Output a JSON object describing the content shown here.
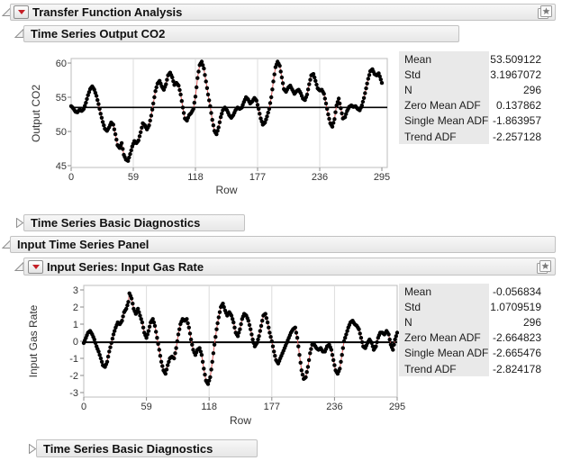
{
  "headers": {
    "transfer_function": {
      "title": "Transfer Function Analysis",
      "state": "expanded"
    },
    "output_series": {
      "title": "Time Series Output CO2",
      "state": "expanded"
    },
    "diagnostics_output": {
      "title": "Time Series Basic Diagnostics",
      "state": "collapsed"
    },
    "input_panel": {
      "title": "Input Time Series Panel",
      "state": "expanded"
    },
    "input_series": {
      "title": "Input Series: Input Gas Rate",
      "state": "expanded"
    },
    "diagnostics_input": {
      "title": "Time Series Basic Diagnostics",
      "state": "collapsed"
    }
  },
  "icons": {
    "menu": "red-triangle-menu",
    "bookmark": "layered-star-bookmark",
    "expanded": "open-disclosure-triangle",
    "collapsed": "closed-disclosure-triangle"
  },
  "colors": {
    "accent_red": "#c41e25",
    "series_line": "#dd5c5c",
    "marker": "#000000",
    "panel_bg": "#e9e9e9",
    "header_border": "#c2c2c2",
    "grid": "#dcdcdc",
    "plot_frame": "#bcbcbc",
    "tick": "#8a8a8a",
    "text": "#1c1c1c"
  },
  "summary_panels": [
    {
      "rows": [
        {
          "label": "Mean",
          "value": "53.509122"
        },
        {
          "label": "Std",
          "value": "3.1967072"
        },
        {
          "label": "N",
          "value": "296"
        },
        {
          "label": "Zero Mean ADF",
          "value": "0.137862"
        },
        {
          "label": "Single Mean ADF",
          "value": "-1.863957"
        },
        {
          "label": "Trend ADF",
          "value": "-2.257128"
        }
      ]
    },
    {
      "rows": [
        {
          "label": "Mean",
          "value": "-0.056834"
        },
        {
          "label": "Std",
          "value": "1.0709519"
        },
        {
          "label": "N",
          "value": "296"
        },
        {
          "label": "Zero Mean ADF",
          "value": "-2.664823"
        },
        {
          "label": "Single Mean ADF",
          "value": "-2.665476"
        },
        {
          "label": "Trend ADF",
          "value": "-2.824178"
        }
      ]
    }
  ],
  "chart_data": [
    {
      "type": "line",
      "title": "Time Series Output CO2",
      "series_name": "Output CO2",
      "xlabel": "Row",
      "ylabel": "Output CO2",
      "x_ticks": [
        0,
        59,
        118,
        177,
        236,
        295
      ],
      "y_ticks": [
        45,
        50,
        55,
        60
      ],
      "xlim": [
        0,
        295
      ],
      "ylim": [
        44.7,
        60.7
      ],
      "grid": "vertical-only",
      "legend": "none",
      "marker": "filled-circle",
      "mean_line": 53.509122,
      "n_points": 296,
      "waypoints": [
        [
          0,
          53.7
        ],
        [
          2,
          53.4
        ],
        [
          4,
          52.9
        ],
        [
          6,
          52.8
        ],
        [
          8,
          53.2
        ],
        [
          10,
          53.0
        ],
        [
          12,
          53.3
        ],
        [
          14,
          54.2
        ],
        [
          16,
          55.3
        ],
        [
          18,
          56.2
        ],
        [
          20,
          56.6
        ],
        [
          22,
          56.1
        ],
        [
          24,
          55.2
        ],
        [
          26,
          54.0
        ],
        [
          28,
          52.6
        ],
        [
          30,
          51.4
        ],
        [
          32,
          50.4
        ],
        [
          34,
          50.1
        ],
        [
          36,
          50.6
        ],
        [
          38,
          51.3
        ],
        [
          40,
          51.0
        ],
        [
          42,
          49.6
        ],
        [
          44,
          48.0
        ],
        [
          46,
          47.6
        ],
        [
          48,
          48.3
        ],
        [
          50,
          46.6
        ],
        [
          52,
          45.9
        ],
        [
          54,
          45.7
        ],
        [
          56,
          46.7
        ],
        [
          58,
          47.8
        ],
        [
          60,
          48.6
        ],
        [
          62,
          48.3
        ],
        [
          64,
          48.7
        ],
        [
          66,
          49.9
        ],
        [
          68,
          51.2
        ],
        [
          70,
          50.9
        ],
        [
          72,
          50.3
        ],
        [
          74,
          50.9
        ],
        [
          76,
          52.3
        ],
        [
          78,
          54.1
        ],
        [
          80,
          55.9
        ],
        [
          82,
          57.0
        ],
        [
          84,
          57.4
        ],
        [
          86,
          56.6
        ],
        [
          88,
          56.1
        ],
        [
          90,
          56.9
        ],
        [
          92,
          58.2
        ],
        [
          94,
          58.6
        ],
        [
          96,
          57.9
        ],
        [
          98,
          56.8
        ],
        [
          100,
          57.1
        ],
        [
          102,
          56.7
        ],
        [
          104,
          55.4
        ],
        [
          106,
          53.5
        ],
        [
          108,
          51.9
        ],
        [
          110,
          51.6
        ],
        [
          112,
          52.4
        ],
        [
          114,
          52.7
        ],
        [
          116,
          53.3
        ],
        [
          118,
          55.1
        ],
        [
          120,
          57.8
        ],
        [
          122,
          59.7
        ],
        [
          124,
          60.2
        ],
        [
          126,
          59.2
        ],
        [
          128,
          57.3
        ],
        [
          130,
          55.4
        ],
        [
          132,
          53.7
        ],
        [
          134,
          51.7
        ],
        [
          136,
          50.1
        ],
        [
          138,
          49.6
        ],
        [
          140,
          50.6
        ],
        [
          142,
          52.1
        ],
        [
          144,
          53.1
        ],
        [
          146,
          53.5
        ],
        [
          148,
          53.1
        ],
        [
          150,
          52.4
        ],
        [
          152,
          52.0
        ],
        [
          154,
          52.4
        ],
        [
          156,
          53.1
        ],
        [
          158,
          53.5
        ],
        [
          160,
          53.3
        ],
        [
          162,
          53.5
        ],
        [
          164,
          54.3
        ],
        [
          166,
          55.0
        ],
        [
          168,
          54.7
        ],
        [
          170,
          54.1
        ],
        [
          172,
          54.4
        ],
        [
          174,
          54.9
        ],
        [
          176,
          54.5
        ],
        [
          178,
          53.3
        ],
        [
          180,
          51.9
        ],
        [
          182,
          51.0
        ],
        [
          184,
          51.3
        ],
        [
          186,
          52.2
        ],
        [
          188,
          53.3
        ],
        [
          190,
          55.0
        ],
        [
          192,
          57.3
        ],
        [
          194,
          59.4
        ],
        [
          196,
          60.2
        ],
        [
          198,
          59.6
        ],
        [
          200,
          57.9
        ],
        [
          202,
          56.2
        ],
        [
          204,
          55.8
        ],
        [
          206,
          56.4
        ],
        [
          208,
          56.7
        ],
        [
          210,
          56.1
        ],
        [
          212,
          55.5
        ],
        [
          214,
          55.9
        ],
        [
          216,
          56.1
        ],
        [
          218,
          55.6
        ],
        [
          220,
          54.8
        ],
        [
          222,
          54.6
        ],
        [
          224,
          55.4
        ],
        [
          226,
          56.9
        ],
        [
          228,
          58.2
        ],
        [
          230,
          58.4
        ],
        [
          232,
          57.4
        ],
        [
          234,
          56.3
        ],
        [
          236,
          56.0
        ],
        [
          238,
          56.1
        ],
        [
          240,
          55.5
        ],
        [
          242,
          54.1
        ],
        [
          244,
          52.5
        ],
        [
          246,
          51.2
        ],
        [
          248,
          50.7
        ],
        [
          250,
          51.8
        ],
        [
          252,
          53.8
        ],
        [
          254,
          54.8
        ],
        [
          256,
          53.4
        ],
        [
          258,
          51.9
        ],
        [
          260,
          52.1
        ],
        [
          262,
          53.0
        ],
        [
          264,
          53.6
        ],
        [
          266,
          53.8
        ],
        [
          268,
          53.6
        ],
        [
          270,
          53.7
        ],
        [
          272,
          53.3
        ],
        [
          274,
          53.1
        ],
        [
          276,
          53.8
        ],
        [
          278,
          54.9
        ],
        [
          280,
          56.3
        ],
        [
          282,
          57.7
        ],
        [
          284,
          58.8
        ],
        [
          286,
          59.1
        ],
        [
          288,
          58.4
        ],
        [
          290,
          58.2
        ],
        [
          292,
          58.5
        ],
        [
          294,
          57.6
        ],
        [
          295,
          57.1
        ]
      ]
    },
    {
      "type": "line",
      "title": "Input Series: Input Gas Rate",
      "series_name": "Input Gas Rate",
      "xlabel": "Row",
      "ylabel": "Input Gas Rate",
      "x_ticks": [
        0,
        59,
        118,
        177,
        236,
        295
      ],
      "y_ticks": [
        -3,
        -2,
        -1,
        0,
        1,
        2,
        3
      ],
      "xlim": [
        0,
        295
      ],
      "ylim": [
        -3.26,
        3.26
      ],
      "grid": "vertical-only",
      "legend": "none",
      "marker": "filled-circle",
      "mean_line": -0.056834,
      "n_points": 296,
      "waypoints": [
        [
          0,
          -0.1
        ],
        [
          2,
          0.2
        ],
        [
          4,
          0.5
        ],
        [
          6,
          0.6
        ],
        [
          8,
          0.4
        ],
        [
          10,
          0.1
        ],
        [
          12,
          -0.3
        ],
        [
          14,
          -0.6
        ],
        [
          16,
          -1.0
        ],
        [
          18,
          -1.4
        ],
        [
          20,
          -1.5
        ],
        [
          22,
          -1.2
        ],
        [
          24,
          -0.6
        ],
        [
          26,
          -0.1
        ],
        [
          28,
          0.4
        ],
        [
          30,
          0.8
        ],
        [
          32,
          1.1
        ],
        [
          34,
          1.0
        ],
        [
          36,
          1.2
        ],
        [
          38,
          1.7
        ],
        [
          40,
          1.9
        ],
        [
          42,
          2.3
        ],
        [
          43,
          2.8
        ],
        [
          45,
          2.5
        ],
        [
          47,
          1.9
        ],
        [
          49,
          1.6
        ],
        [
          51,
          1.9
        ],
        [
          53,
          1.5
        ],
        [
          55,
          1.1
        ],
        [
          57,
          0.5
        ],
        [
          59,
          0.2
        ],
        [
          61,
          0.6
        ],
        [
          63,
          1.1
        ],
        [
          65,
          1.3
        ],
        [
          67,
          0.9
        ],
        [
          69,
          0.2
        ],
        [
          71,
          -0.5
        ],
        [
          73,
          -1.2
        ],
        [
          75,
          -1.7
        ],
        [
          77,
          -1.9
        ],
        [
          79,
          -1.4
        ],
        [
          81,
          -1.0
        ],
        [
          83,
          -0.9
        ],
        [
          85,
          -1.0
        ],
        [
          87,
          -0.4
        ],
        [
          89,
          0.4
        ],
        [
          91,
          1.0
        ],
        [
          93,
          1.3
        ],
        [
          95,
          1.2
        ],
        [
          97,
          1.3
        ],
        [
          99,
          0.8
        ],
        [
          101,
          0.1
        ],
        [
          103,
          -0.5
        ],
        [
          105,
          -0.8
        ],
        [
          107,
          -0.5
        ],
        [
          109,
          -0.4
        ],
        [
          111,
          -0.8
        ],
        [
          113,
          -1.6
        ],
        [
          115,
          -2.3
        ],
        [
          117,
          -2.5
        ],
        [
          119,
          -2.1
        ],
        [
          121,
          -1.2
        ],
        [
          123,
          -0.2
        ],
        [
          125,
          0.7
        ],
        [
          127,
          1.4
        ],
        [
          129,
          2.0
        ],
        [
          131,
          2.2
        ],
        [
          133,
          1.8
        ],
        [
          135,
          1.5
        ],
        [
          137,
          1.7
        ],
        [
          139,
          1.5
        ],
        [
          141,
          1.1
        ],
        [
          143,
          0.5
        ],
        [
          145,
          0.3
        ],
        [
          147,
          0.7
        ],
        [
          149,
          1.3
        ],
        [
          151,
          1.6
        ],
        [
          153,
          1.5
        ],
        [
          155,
          1.2
        ],
        [
          157,
          0.7
        ],
        [
          159,
          0.1
        ],
        [
          161,
          -0.3
        ],
        [
          163,
          -0.1
        ],
        [
          165,
          0.3
        ],
        [
          167,
          0.9
        ],
        [
          169,
          1.5
        ],
        [
          171,
          1.6
        ],
        [
          173,
          1.1
        ],
        [
          175,
          0.5
        ],
        [
          177,
          0.0
        ],
        [
          179,
          -0.6
        ],
        [
          181,
          -1.1
        ],
        [
          183,
          -1.3
        ],
        [
          185,
          -1.0
        ],
        [
          187,
          -0.7
        ],
        [
          189,
          -0.4
        ],
        [
          191,
          -0.1
        ],
        [
          193,
          0.2
        ],
        [
          195,
          0.5
        ],
        [
          197,
          0.7
        ],
        [
          199,
          0.8
        ],
        [
          201,
          0.2
        ],
        [
          203,
          -0.8
        ],
        [
          205,
          -1.7
        ],
        [
          207,
          -2.2
        ],
        [
          209,
          -2.1
        ],
        [
          211,
          -1.5
        ],
        [
          213,
          -0.7
        ],
        [
          215,
          -0.2
        ],
        [
          217,
          -0.2
        ],
        [
          219,
          -0.4
        ],
        [
          221,
          -0.5
        ],
        [
          223,
          -0.4
        ],
        [
          225,
          -0.6
        ],
        [
          227,
          -0.6
        ],
        [
          229,
          -0.3
        ],
        [
          231,
          -0.2
        ],
        [
          233,
          -0.5
        ],
        [
          235,
          -1.1
        ],
        [
          237,
          -1.7
        ],
        [
          239,
          -1.9
        ],
        [
          241,
          -1.6
        ],
        [
          243,
          -0.8
        ],
        [
          245,
          0.0
        ],
        [
          247,
          0.4
        ],
        [
          249,
          0.8
        ],
        [
          251,
          1.1
        ],
        [
          253,
          1.2
        ],
        [
          255,
          1.0
        ],
        [
          257,
          0.9
        ],
        [
          259,
          0.7
        ],
        [
          261,
          0.2
        ],
        [
          263,
          -0.3
        ],
        [
          265,
          -0.4
        ],
        [
          267,
          -0.1
        ],
        [
          269,
          0.1
        ],
        [
          271,
          -0.1
        ],
        [
          273,
          -0.5
        ],
        [
          275,
          -0.3
        ],
        [
          277,
          0.2
        ],
        [
          279,
          0.5
        ],
        [
          281,
          0.5
        ],
        [
          283,
          0.4
        ],
        [
          285,
          0.6
        ],
        [
          287,
          0.4
        ],
        [
          289,
          -0.2
        ],
        [
          291,
          -0.5
        ],
        [
          293,
          0.1
        ],
        [
          295,
          0.5
        ]
      ]
    }
  ]
}
